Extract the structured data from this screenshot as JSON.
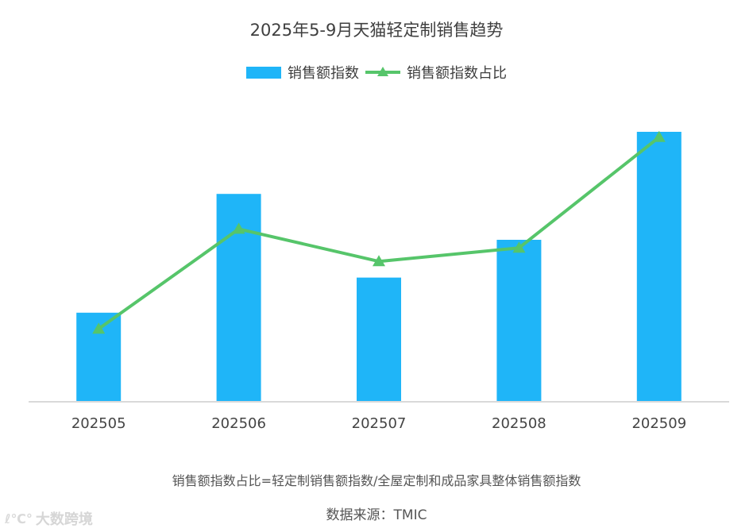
{
  "title": "2025年5-9月天猫轻定制销售趋势",
  "footnote": "销售额指数占比=轻定制销售额指数/全屋定制和成品家具整体销售额指数",
  "source": "数据来源：TMIC",
  "watermark": {
    "logo": "ℓ℃°",
    "text": "大数跨境"
  },
  "colors": {
    "bar": "#1fb5f8",
    "line": "#56c56a",
    "axis": "#d9d9d9"
  },
  "chart_data": {
    "type": "bar",
    "title": "2025年5-9月天猫轻定制销售趋势",
    "categories": [
      "202505",
      "202506",
      "202507",
      "202508",
      "202509"
    ],
    "series": [
      {
        "name": "销售额指数",
        "type": "bar",
        "color": "#1fb5f8",
        "values": [
          33,
          77,
          46,
          60,
          100
        ]
      },
      {
        "name": "销售额指数占比",
        "type": "line",
        "marker": "triangle",
        "color": "#56c56a",
        "values": [
          27,
          64,
          52,
          57,
          98
        ]
      }
    ],
    "ylim": [
      0,
      100
    ],
    "grid": false,
    "legend": "top-center"
  }
}
